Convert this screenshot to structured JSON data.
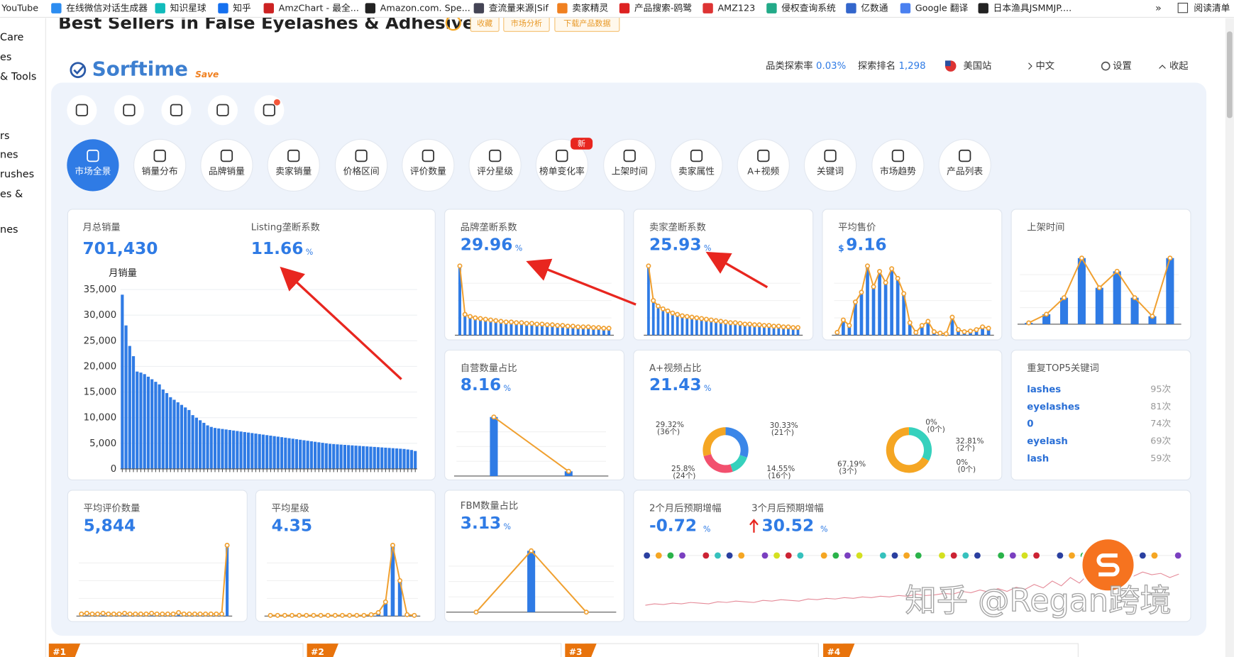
{
  "browser": {
    "bookmarks": [
      "YouTube",
      "在线微信对话生成器",
      "知识星球",
      "知乎",
      "AmzChart - 最全...",
      "Amazon.com. Spe...",
      "查流量来源|Sif",
      "卖家精灵",
      "产品搜索-鸥鹭",
      "AMZ123",
      "侵权查询系统",
      "亿数通",
      "Google 翻译",
      "日本渔具JSMMJP...."
    ],
    "more": "»",
    "reading_list": "阅读清单"
  },
  "sidebar": {
    "items": [
      "Care",
      "es",
      "& Tools",
      "rs",
      "nes",
      "rushes",
      "es &",
      "nes"
    ]
  },
  "page": {
    "title": "Best Sellers in False Eyelashes & Adhesives",
    "buttons": [
      "收藏",
      "市场分析",
      "下载产品数据"
    ]
  },
  "header": {
    "logo": "Sorftime",
    "save": "Save",
    "stats": [
      {
        "label": "品类探索率",
        "value": "0.03%"
      },
      {
        "label": "探索排名",
        "value": "1,298"
      }
    ],
    "site": "美国站",
    "lang": "中文",
    "settings": "设置",
    "collapse": "收起"
  },
  "toolbar_tabs": [
    "市场全景",
    "销量分布",
    "品牌销量",
    "卖家销量",
    "价格区间",
    "评价数量",
    "评分星级",
    "榜单变化率",
    "上架时间",
    "卖家属性",
    "A+视频",
    "关键词",
    "市场趋势",
    "产品列表"
  ],
  "new_badge": "新",
  "cards": {
    "monthly_sales": {
      "label": "月总销量",
      "value": "701,430",
      "listing_label": "Listing垄断系数",
      "listing_value": "11.66",
      "unit": "%",
      "chart": {
        "type": "bar",
        "y_label": "月销量",
        "ylim": [
          0,
          35000
        ],
        "yticks": [
          0,
          {
            "value": 5000,
            "label": "5,000"
          },
          {
            "value": 10000,
            "label": "10,000"
          },
          {
            "value": 15000,
            "label": "15,000"
          },
          {
            "value": 20000,
            "label": "20,000"
          },
          {
            "value": 25000,
            "label": "25,000"
          },
          {
            "value": 30000,
            "label": "30,000"
          },
          {
            "value": 35000,
            "label": "35,000"
          }
        ],
        "color": "#2f7be5",
        "values": [
          34000,
          28000,
          24000,
          22000,
          19000,
          18800,
          18500,
          18000,
          17500,
          17000,
          16500,
          15500,
          14800,
          14000,
          13500,
          13000,
          12500,
          12000,
          11500,
          10500,
          10000,
          9500,
          9000,
          8500,
          8200,
          8000,
          7900,
          7800,
          7700,
          7600,
          7500,
          7400,
          7300,
          7200,
          7100,
          7000,
          6900,
          6800,
          6700,
          6600,
          6500,
          6400,
          6300,
          6200,
          6100,
          6000,
          5900,
          5800,
          5700,
          5600,
          5500,
          5400,
          5300,
          5200,
          5100,
          5000,
          4900,
          4850,
          4800,
          4750,
          4700,
          4650,
          4600,
          4550,
          4500,
          4450,
          4400,
          4350,
          4300,
          4250,
          4200,
          4150,
          4100,
          4050,
          4000,
          3950,
          3900,
          3800,
          3700,
          3500
        ]
      }
    },
    "brand": {
      "label": "品牌垄断系数",
      "value": "29.96",
      "unit": "%",
      "chart": {
        "type": "bar-line",
        "values": [
          100,
          30,
          27,
          25,
          24,
          23,
          22,
          21,
          20,
          19,
          19,
          18,
          18,
          17,
          17,
          16,
          16,
          15,
          15,
          14,
          14,
          13,
          13,
          12,
          12,
          12,
          11,
          11,
          10,
          10
        ]
      }
    },
    "seller": {
      "label": "卖家垄断系数",
      "value": "25.93",
      "unit": "%",
      "chart": {
        "type": "bar-line",
        "values": [
          100,
          50,
          42,
          38,
          35,
          32,
          30,
          28,
          27,
          26,
          25,
          24,
          23,
          22,
          21,
          20,
          19,
          18,
          18,
          17,
          16,
          16,
          15,
          15,
          14,
          14,
          13,
          13,
          12,
          12,
          11,
          11
        ]
      }
    },
    "price": {
      "label": "平均售价",
      "currency": "$",
      "value": "9.16",
      "chart": {
        "type": "bar-line",
        "values": [
          4,
          22,
          14,
          48,
          62,
          100,
          70,
          92,
          76,
          96,
          82,
          60,
          18,
          4,
          14,
          20,
          5,
          3,
          2,
          26,
          8,
          5,
          6,
          8,
          12,
          10
        ]
      }
    },
    "launch": {
      "label": "上架时间",
      "chart": {
        "type": "bar-line",
        "values": [
          2,
          15,
          40,
          100,
          55,
          80,
          40,
          12,
          100
        ]
      }
    },
    "self_operated": {
      "label": "自营数量占比",
      "value": "8.16",
      "unit": "%",
      "chart": {
        "type": "bar-line",
        "values": [
          100,
          8
        ]
      }
    },
    "aplus": {
      "label": "A+视频占比",
      "value": "21.43",
      "unit": "%",
      "colors": [
        "#3a86e8",
        "#36d1bd",
        "#f2506e",
        "#f5a623"
      ],
      "donuts": [
        {
          "values": [
            30.33,
            14.55,
            25.8,
            29.32
          ],
          "value_labels": [
            "30.33%",
            "14.55%",
            "25.8%",
            "29.32%"
          ],
          "count_labels": [
            "(21个)",
            "(16个)",
            "(24个)",
            "(36个)"
          ]
        },
        {
          "values": [
            0,
            32.81,
            0,
            67.19
          ],
          "value_labels": [
            "0%",
            "32.81%",
            "0%",
            "67.19%"
          ],
          "count_labels": [
            "(0个)",
            "(2个)",
            "(0个)",
            "(3个)"
          ]
        }
      ]
    },
    "keywords": {
      "label": "重复TOP5关键词",
      "rows": [
        [
          "lashes",
          "95次"
        ],
        [
          "eyelashes",
          "81次"
        ],
        [
          "0",
          "74次"
        ],
        [
          "eyelash",
          "69次"
        ],
        [
          "lash",
          "59次"
        ]
      ]
    },
    "reviews": {
      "label": "平均评价数量",
      "value": "5,844",
      "chart": {
        "type": "bar-line",
        "values": [
          3,
          4,
          3,
          3,
          4,
          3,
          3,
          3,
          4,
          3,
          3,
          3,
          3,
          4,
          3,
          3,
          3,
          3,
          5,
          3,
          3,
          3,
          3,
          3,
          3,
          3,
          3,
          100
        ]
      }
    },
    "rating": {
      "label": "平均星级",
      "value": "4.35",
      "chart": {
        "type": "bar-line",
        "values": [
          1,
          1,
          1,
          1,
          1,
          1,
          1,
          1,
          1,
          1,
          1,
          1,
          1,
          1,
          2,
          5,
          20,
          100,
          50,
          2,
          1
        ]
      }
    },
    "fbm": {
      "label": "FBM数量占比",
      "value": "3.13",
      "unit": "%",
      "chart": {
        "type": "bar-line",
        "values": [
          0,
          100,
          0
        ]
      }
    },
    "trend": {
      "label_2m": "2个月后预期增幅",
      "value_2m": "-0.72",
      "label_3m": "3个月后预期增幅",
      "value_3m": "30.52",
      "unit": "%",
      "chart": {
        "type": "line",
        "values": [
          10,
          12,
          11,
          13,
          12,
          14,
          13,
          12,
          15,
          14,
          16,
          15,
          14,
          17,
          16,
          18,
          17,
          16,
          19,
          18,
          20,
          19,
          21,
          20,
          22,
          21,
          23,
          22,
          24,
          23,
          26,
          24,
          25,
          27,
          26,
          30,
          28,
          32,
          29,
          34,
          30,
          36,
          33,
          40,
          35,
          45,
          38,
          50,
          42,
          55,
          48,
          70,
          55,
          60,
          52,
          58,
          54,
          56,
          50,
          55
        ]
      }
    }
  },
  "bottom_tabs": [
    "#1",
    "#2",
    "#3",
    "#4"
  ],
  "watermark": "知乎 @Regan跨境"
}
